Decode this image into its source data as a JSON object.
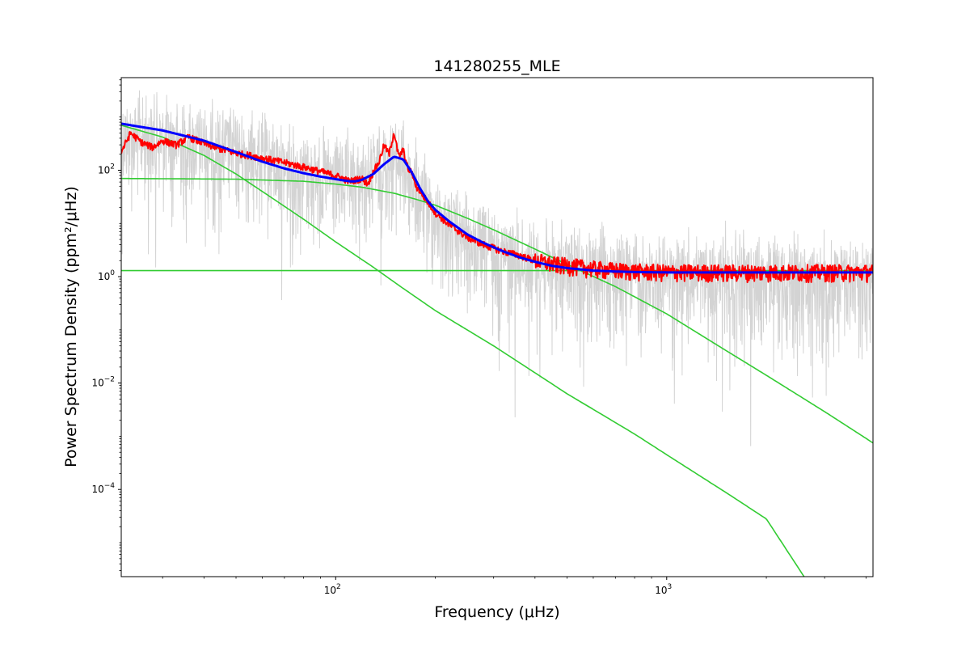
{
  "chart_data": {
    "type": "line",
    "title": "141280255_MLE",
    "xlabel": "Frequency (μHz)",
    "ylabel": "Power Spectrum Density (ppm²/μHz)",
    "x_scale": "log",
    "y_scale": "log",
    "xlim": [
      22.5,
      4200
    ],
    "ylim": [
      2.3e-06,
      5500
    ],
    "grid": false,
    "legend": "none",
    "x_tick_labels": [
      {
        "value": 100,
        "base": "10",
        "exp": "2"
      },
      {
        "value": 1000,
        "base": "10",
        "exp": "3"
      }
    ],
    "y_tick_labels": [
      {
        "value": 0.0001,
        "base": "10",
        "exp": "−4"
      },
      {
        "value": 0.01,
        "base": "10",
        "exp": "−2"
      },
      {
        "value": 1,
        "base": "10",
        "exp": "0"
      },
      {
        "value": 100,
        "base": "10",
        "exp": "2"
      }
    ],
    "series": [
      {
        "color": "#d3d3d3",
        "description": "raw power spectrum (noisy)",
        "x": [
          22.5,
          30,
          40,
          50,
          60,
          70,
          80,
          90,
          100,
          110,
          120,
          130,
          140,
          150,
          160,
          170,
          180,
          200,
          230,
          260,
          300,
          350,
          400,
          500,
          600,
          800,
          1000,
          1300,
          1600,
          2000,
          2500,
          3000,
          3500,
          4200
        ],
        "y": [
          500,
          420,
          330,
          250,
          180,
          130,
          100,
          85,
          75,
          65,
          70,
          95,
          150,
          180,
          140,
          70,
          35,
          15,
          7,
          4.5,
          3.2,
          2.4,
          1.9,
          1.5,
          1.3,
          1.1,
          1.05,
          1.0,
          1.0,
          1.0,
          1.0,
          1.0,
          1.0,
          1.0
        ]
      },
      {
        "color": "#ff0000",
        "description": "smoothed spectrum",
        "x": [
          22.5,
          24,
          26,
          28,
          30,
          33,
          36,
          40,
          45,
          50,
          55,
          60,
          70,
          80,
          90,
          100,
          110,
          120,
          125,
          130,
          135,
          140,
          145,
          150,
          155,
          160,
          165,
          170,
          175,
          180,
          190,
          200,
          220,
          250,
          280,
          320,
          360,
          400,
          450,
          500,
          600,
          700,
          800,
          1000,
          1300,
          1600,
          2000,
          2500,
          3000,
          3500,
          4200
        ],
        "y": [
          220,
          500,
          330,
          270,
          360,
          300,
          420,
          320,
          250,
          210,
          190,
          170,
          140,
          115,
          95,
          80,
          62,
          70,
          55,
          95,
          140,
          300,
          200,
          520,
          180,
          240,
          110,
          90,
          50,
          40,
          25,
          16,
          9.5,
          5.5,
          4.0,
          3.0,
          2.5,
          2.0,
          1.7,
          1.6,
          1.4,
          1.3,
          1.25,
          1.2,
          1.2,
          1.2,
          1.2,
          1.2,
          1.2,
          1.2,
          1.2
        ]
      },
      {
        "color": "#0000ff",
        "description": "total model fit",
        "x": [
          22.5,
          30,
          40,
          50,
          60,
          70,
          80,
          90,
          100,
          110,
          115,
          120,
          130,
          140,
          150,
          160,
          170,
          180,
          190,
          200,
          220,
          250,
          280,
          320,
          360,
          400,
          450,
          500,
          600,
          700,
          800,
          1000,
          1300,
          1600,
          2000,
          2500,
          3000,
          3500,
          4200
        ],
        "y": [
          750,
          560,
          360,
          220,
          145,
          108,
          88,
          76,
          68,
          62,
          62,
          66,
          85,
          130,
          180,
          160,
          90,
          45,
          26,
          18,
          11,
          6.2,
          4.3,
          3.0,
          2.3,
          1.9,
          1.6,
          1.45,
          1.3,
          1.25,
          1.22,
          1.2,
          1.2,
          1.2,
          1.2,
          1.2,
          1.2,
          1.2,
          1.2
        ]
      },
      {
        "color": "#33cc33",
        "description": "granulation component 1",
        "x": [
          22.5,
          30,
          40,
          50,
          60,
          80,
          100,
          130,
          160,
          200,
          300,
          500,
          800,
          1000,
          1500,
          2000,
          2600
        ],
        "y": [
          700,
          420,
          190,
          85,
          40,
          12,
          4.5,
          1.5,
          0.6,
          0.23,
          0.05,
          0.0063,
          0.0011,
          0.00045,
          9e-05,
          2.8e-05,
          2.3e-06
        ]
      },
      {
        "color": "#33cc33",
        "description": "granulation component 2",
        "x": [
          22.5,
          50,
          80,
          100,
          120,
          150,
          180,
          200,
          250,
          300,
          400,
          500,
          700,
          1000,
          1500,
          2000,
          3000,
          4200
        ],
        "y": [
          70,
          68,
          62,
          55,
          48,
          37,
          27,
          22,
          12.5,
          7.6,
          3.3,
          1.7,
          0.65,
          0.2,
          0.042,
          0.014,
          0.0029,
          0.00075
        ]
      },
      {
        "color": "#33cc33",
        "description": "white noise level",
        "x": [
          22.5,
          4200
        ],
        "y": [
          1.3,
          1.3
        ]
      }
    ]
  }
}
